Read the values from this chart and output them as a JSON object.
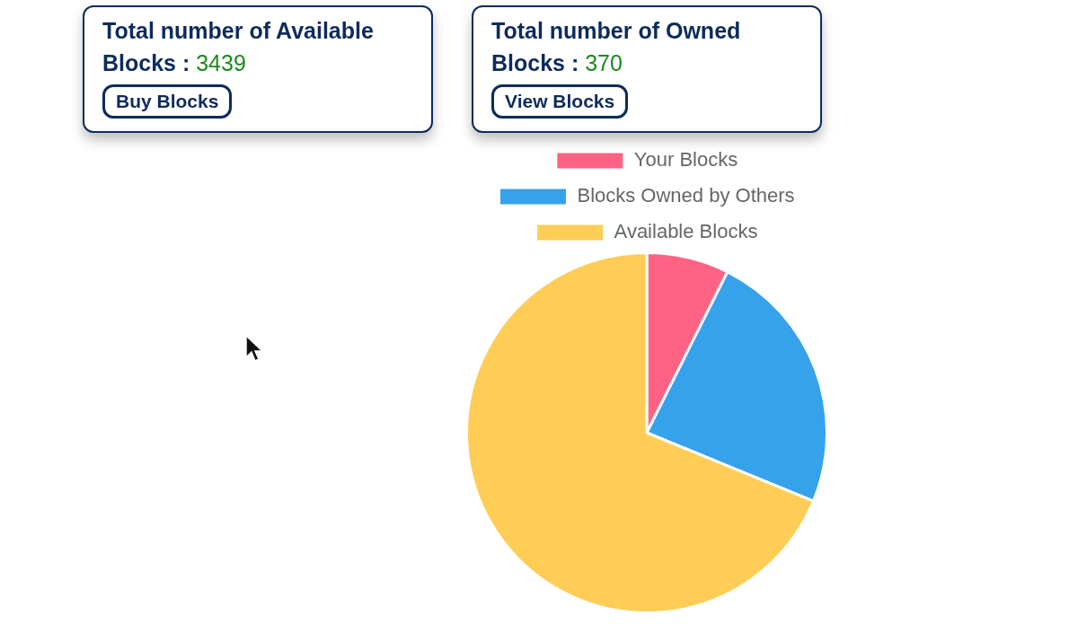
{
  "chart_data": [
    {
      "type": "other",
      "title": "Total number of Available Blocks :",
      "annotations": [
        "3439",
        "Buy Blocks"
      ]
    },
    {
      "type": "other",
      "title": "Total number of Owned Blocks :",
      "annotations": [
        "370",
        "View Blocks"
      ]
    },
    {
      "type": "pie",
      "categories": [
        "Your Blocks",
        "Blocks Owned by Others",
        "Available Blocks"
      ],
      "values": [
        7.4,
        23.8,
        68.8
      ],
      "colors": [
        "#ff6384",
        "#36a2eb",
        "#ffcd56"
      ],
      "legend": "top"
    }
  ]
}
